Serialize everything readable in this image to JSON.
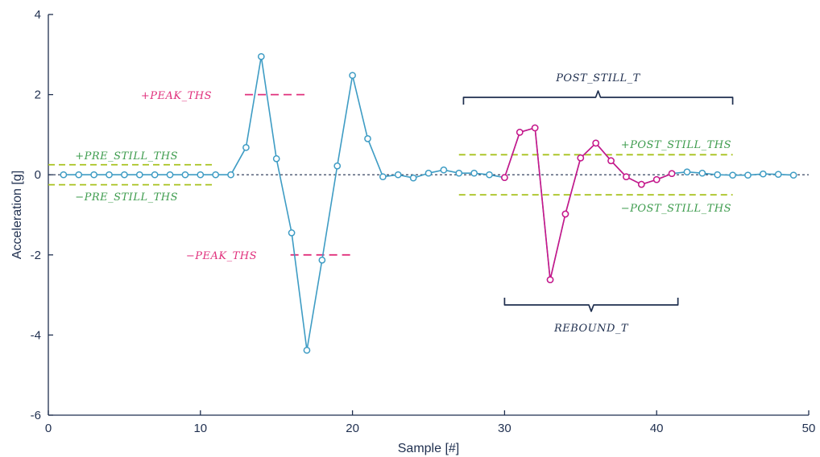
{
  "chart_data": {
    "type": "line",
    "xlabel": "Sample [#]",
    "ylabel": "Acceleration [g]",
    "xlim": [
      0,
      50
    ],
    "ylim": [
      -6,
      4
    ],
    "x_ticks": [
      0,
      10,
      20,
      30,
      40,
      50
    ],
    "y_ticks": [
      -6,
      -4,
      -2,
      0,
      2,
      4
    ],
    "grid": false,
    "colors": {
      "axis": "#1f2f4f",
      "main_series": "#3e9cc4",
      "rebound_series": "#cc1489",
      "peak": "#e0307c",
      "still": "#a8c21e",
      "still_text": "#3e9c4e",
      "bracket": "#1f2f4f",
      "zero_line": "#1f2f4f"
    },
    "series": [
      {
        "x": [
          1,
          2,
          3,
          4,
          5,
          6,
          7,
          8,
          9,
          10,
          11,
          12,
          13,
          14,
          15,
          16,
          17,
          18,
          19,
          20,
          21,
          22,
          23,
          24,
          25,
          26,
          27,
          28,
          29,
          30,
          31,
          32,
          33,
          34,
          35,
          36,
          37,
          38,
          39,
          40,
          41,
          42,
          43,
          44,
          45,
          46,
          47,
          48,
          49
        ],
        "values": [
          0,
          0,
          0,
          0,
          0,
          0,
          0,
          0,
          0,
          0,
          0,
          0,
          0.68,
          2.95,
          0.4,
          -1.45,
          -4.38,
          -2.13,
          0.22,
          2.48,
          0.9,
          -0.05,
          0,
          -0.08,
          0.04,
          0.12,
          0.04,
          0.04,
          0,
          -0.07,
          1.06,
          1.17,
          -2.62,
          -0.98,
          0.42,
          0.79,
          0.35,
          -0.05,
          -0.24,
          -0.12,
          0.03,
          0.07,
          0.04,
          0,
          -0.01,
          -0.01,
          0.02,
          0.01,
          -0.01
        ]
      },
      {
        "x": [
          30,
          31,
          32,
          33,
          34,
          35,
          36,
          37,
          38,
          39,
          40,
          41
        ],
        "values": [
          -0.07,
          1.06,
          1.17,
          -2.62,
          -0.98,
          0.42,
          0.79,
          0.35,
          -0.05,
          -0.24,
          -0.12,
          0.03
        ]
      }
    ],
    "thresholds": [
      {
        "label": "+PEAK_THS",
        "y": 2,
        "x_range": [
          12.5,
          17
        ]
      },
      {
        "label": "−PEAK_THS",
        "y": -2,
        "x_range": [
          15.5,
          20
        ]
      },
      {
        "label": "+PRE_STILL_THS",
        "y": 0.25,
        "x_range": [
          0,
          11
        ]
      },
      {
        "label": "−PRE_STILL_THS",
        "y": -0.25,
        "x_range": [
          0,
          11
        ]
      },
      {
        "label": "+POST_STILL_THS",
        "y": 0.5,
        "x_range": [
          27,
          45
        ]
      },
      {
        "label": "−POST_STILL_THS",
        "y": -0.5,
        "x_range": [
          27,
          45
        ]
      }
    ],
    "brackets": [
      {
        "label": "POST_STILL_T",
        "x_range": [
          27.3,
          45
        ],
        "position": "above"
      },
      {
        "label": "REBOUND_T",
        "x_range": [
          30,
          41.4
        ],
        "position": "below"
      }
    ]
  }
}
